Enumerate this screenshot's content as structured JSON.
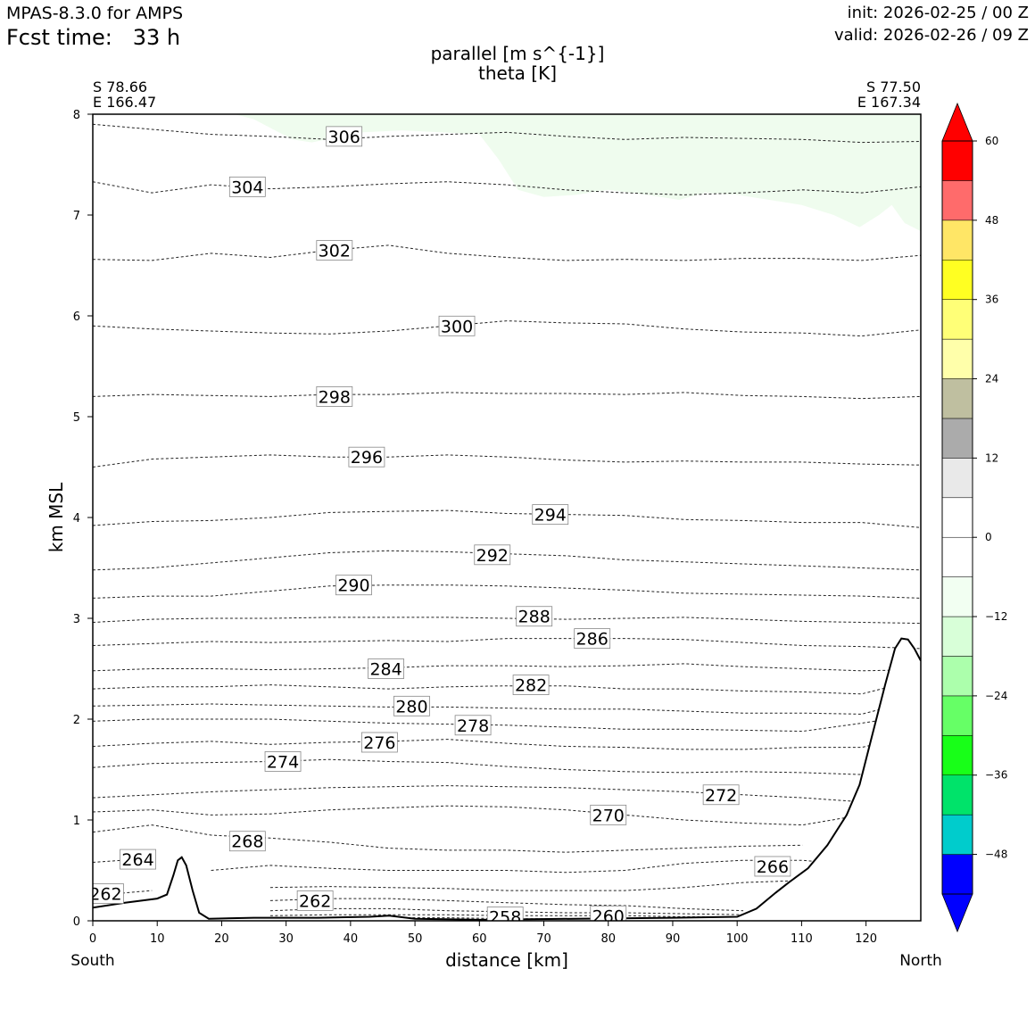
{
  "header": {
    "model": "MPAS-8.3.0 for AMPS",
    "fcst_label": "Fcst time:",
    "fcst_value": "33 h",
    "init": "init: 2026-02-25 / 00 Z",
    "valid": "valid: 2026-02-26 / 09 Z"
  },
  "chart_data": {
    "type": "cross-section",
    "title_line1": "parallel [m s^{-1}]",
    "title_line2": "theta [K]",
    "xlabel": "distance [km]",
    "ylabel": "km MSL",
    "xlim": [
      0,
      128.5
    ],
    "ylim": [
      0,
      8
    ],
    "x_ticks": [
      0,
      10,
      20,
      30,
      40,
      50,
      60,
      70,
      80,
      90,
      100,
      110,
      120
    ],
    "y_ticks": [
      0,
      1,
      2,
      3,
      4,
      5,
      6,
      7,
      8
    ],
    "left_end": {
      "lat": "S 78.66",
      "lon": "E 166.47",
      "direction": "South"
    },
    "right_end": {
      "lat": "S 77.50",
      "lon": "E 167.34",
      "direction": "North"
    },
    "terrain": [
      [
        0,
        0.13
      ],
      [
        5,
        0.18
      ],
      [
        10,
        0.22
      ],
      [
        11.5,
        0.26
      ],
      [
        12.5,
        0.45
      ],
      [
        13.2,
        0.6
      ],
      [
        13.8,
        0.63
      ],
      [
        14.5,
        0.55
      ],
      [
        15.5,
        0.3
      ],
      [
        16.5,
        0.08
      ],
      [
        18,
        0.02
      ],
      [
        25,
        0.03
      ],
      [
        35,
        0.03
      ],
      [
        43,
        0.04
      ],
      [
        46,
        0.05
      ],
      [
        50,
        0.02
      ],
      [
        60,
        0.01
      ],
      [
        75,
        0.02
      ],
      [
        90,
        0.03
      ],
      [
        100,
        0.04
      ],
      [
        103,
        0.12
      ],
      [
        106,
        0.28
      ],
      [
        108,
        0.38
      ],
      [
        111,
        0.52
      ],
      [
        114,
        0.75
      ],
      [
        117,
        1.05
      ],
      [
        119,
        1.35
      ],
      [
        121,
        1.85
      ],
      [
        123,
        2.35
      ],
      [
        124.5,
        2.7
      ],
      [
        125.5,
        2.8
      ],
      [
        126.5,
        2.79
      ],
      [
        127.5,
        2.7
      ],
      [
        128.5,
        2.58
      ]
    ],
    "isentropes": [
      {
        "theta": 306,
        "y": [
          7.9,
          7.85,
          7.8,
          7.78,
          7.75,
          7.78,
          7.8,
          7.82,
          7.78,
          7.75,
          7.77,
          7.76,
          7.75,
          7.72,
          7.73
        ],
        "label_x": 39,
        "label_y": 7.78
      },
      {
        "theta": 304,
        "y": [
          7.33,
          7.22,
          7.3,
          7.26,
          7.28,
          7.31,
          7.33,
          7.3,
          7.25,
          7.22,
          7.2,
          7.22,
          7.25,
          7.22,
          7.28
        ],
        "label_x": 24,
        "label_y": 7.28
      },
      {
        "theta": 302,
        "y": [
          6.56,
          6.55,
          6.62,
          6.58,
          6.65,
          6.7,
          6.62,
          6.58,
          6.55,
          6.56,
          6.55,
          6.57,
          6.57,
          6.55,
          6.6
        ],
        "label_x": 37.5,
        "label_y": 6.65
      },
      {
        "theta": 300,
        "y": [
          5.9,
          5.87,
          5.85,
          5.83,
          5.82,
          5.85,
          5.9,
          5.95,
          5.93,
          5.92,
          5.87,
          5.84,
          5.83,
          5.8,
          5.86
        ],
        "label_x": 56.5,
        "label_y": 5.9
      },
      {
        "theta": 298,
        "y": [
          5.2,
          5.22,
          5.21,
          5.2,
          5.22,
          5.22,
          5.24,
          5.23,
          5.23,
          5.22,
          5.24,
          5.21,
          5.2,
          5.18,
          5.2
        ],
        "label_x": 37.5,
        "label_y": 5.2
      },
      {
        "theta": 296,
        "y": [
          4.5,
          4.58,
          4.6,
          4.62,
          4.6,
          4.6,
          4.62,
          4.6,
          4.57,
          4.55,
          4.56,
          4.55,
          4.55,
          4.53,
          4.52
        ],
        "label_x": 42.5,
        "label_y": 4.6
      },
      {
        "theta": 294,
        "y": [
          3.92,
          3.96,
          3.97,
          4.0,
          4.05,
          4.06,
          4.07,
          4.04,
          4.03,
          4.02,
          3.98,
          3.97,
          3.95,
          3.95,
          3.9
        ],
        "label_x": 71,
        "label_y": 4.03
      },
      {
        "theta": 292,
        "y": [
          3.48,
          3.5,
          3.55,
          3.6,
          3.65,
          3.67,
          3.66,
          3.64,
          3.62,
          3.58,
          3.56,
          3.54,
          3.52,
          3.5,
          3.48
        ],
        "label_x": 62,
        "label_y": 3.63
      },
      {
        "theta": 290,
        "y": [
          3.2,
          3.22,
          3.22,
          3.27,
          3.32,
          3.33,
          3.33,
          3.32,
          3.3,
          3.28,
          3.25,
          3.24,
          3.23,
          3.22,
          3.2
        ],
        "label_x": 40.5,
        "label_y": 3.33
      },
      {
        "theta": 288,
        "y": [
          2.96,
          2.99,
          3.0,
          3.0,
          3.01,
          3.01,
          3.01,
          3.0,
          2.99,
          3.0,
          3.01,
          2.99,
          2.97,
          2.96,
          2.95
        ],
        "label_x": 68.5,
        "label_y": 3.02
      },
      {
        "theta": 286,
        "y": [
          2.73,
          2.75,
          2.77,
          2.76,
          2.77,
          2.78,
          2.77,
          2.8,
          2.8,
          2.8,
          2.79,
          2.76,
          2.73,
          2.72,
          2.7
        ],
        "label_x": 77.5,
        "label_y": 2.8
      },
      {
        "theta": 284,
        "y": [
          2.48,
          2.5,
          2.5,
          2.49,
          2.5,
          2.51,
          2.53,
          2.53,
          2.52,
          2.53,
          2.55,
          2.52,
          2.5,
          2.48,
          2.49
        ],
        "label_x": 45.5,
        "label_y": 2.5
      },
      {
        "theta": 282,
        "y": [
          2.3,
          2.32,
          2.32,
          2.34,
          2.32,
          2.3,
          2.32,
          2.33,
          2.33,
          2.3,
          2.3,
          2.28,
          2.27,
          2.25,
          2.4
        ],
        "label_x": 68,
        "label_y": 2.34
      },
      {
        "theta": 280,
        "y": [
          2.13,
          2.14,
          2.15,
          2.14,
          2.13,
          2.12,
          2.12,
          2.11,
          2.1,
          2.1,
          2.08,
          2.06,
          2.06,
          2.05,
          2.2
        ],
        "label_x": 49.5,
        "label_y": 2.13
      },
      {
        "theta": 278,
        "y": [
          1.98,
          2.0,
          2.0,
          2.0,
          1.98,
          1.96,
          1.95,
          1.94,
          1.92,
          1.9,
          1.9,
          1.89,
          1.88,
          1.96,
          2.05
        ],
        "label_x": 59,
        "label_y": 1.94
      },
      {
        "theta": 276,
        "y": [
          1.73,
          1.76,
          1.78,
          1.75,
          1.77,
          1.78,
          1.8,
          1.76,
          1.73,
          1.72,
          1.7,
          1.7,
          1.72,
          1.72,
          1.85
        ],
        "label_x": 44.5,
        "label_y": 1.77
      },
      {
        "theta": 274,
        "y": [
          1.52,
          1.56,
          1.57,
          1.58,
          1.6,
          1.58,
          1.57,
          1.53,
          1.5,
          1.48,
          1.47,
          1.48,
          1.47,
          1.45,
          1.6
        ],
        "label_x": 29.5,
        "label_y": 1.58
      },
      {
        "theta": 272,
        "y": [
          1.22,
          1.25,
          1.28,
          1.3,
          1.32,
          1.33,
          1.34,
          1.33,
          1.32,
          1.3,
          1.28,
          1.25,
          1.22,
          1.18,
          null
        ],
        "label_x": 97.5,
        "label_y": 1.25
      },
      {
        "theta": 270,
        "y": [
          1.08,
          1.1,
          1.05,
          1.06,
          1.1,
          1.12,
          1.14,
          1.13,
          1.1,
          1.05,
          1.0,
          0.97,
          0.95,
          1.05,
          null
        ],
        "label_x": 80,
        "label_y": 1.05
      },
      {
        "theta": 268,
        "y": [
          0.88,
          0.95,
          0.85,
          0.82,
          0.78,
          0.72,
          0.7,
          0.7,
          0.68,
          0.7,
          0.72,
          0.74,
          0.75,
          null,
          null
        ],
        "label_x": 24,
        "label_y": 0.79
      },
      {
        "theta": 266,
        "y": [
          null,
          null,
          0.5,
          0.55,
          0.52,
          0.5,
          0.5,
          0.5,
          0.48,
          0.5,
          0.57,
          0.6,
          0.6,
          0.55,
          null
        ],
        "label_x": 105.5,
        "label_y": 0.54
      },
      {
        "theta": 264,
        "y": [
          0.58,
          0.62,
          null,
          0.33,
          0.34,
          0.33,
          0.32,
          0.3,
          0.3,
          0.3,
          0.33,
          0.38,
          0.4,
          0.4,
          null
        ],
        "label_x": 7,
        "label_y": 0.61
      },
      {
        "theta": 262,
        "y": [
          0.25,
          0.3,
          null,
          0.2,
          0.22,
          0.22,
          0.2,
          0.18,
          0.16,
          0.15,
          0.12,
          0.1,
          null,
          null,
          null
        ],
        "label_x": 2,
        "label_y": 0.27
      },
      {
        "theta": 262,
        "y": [
          null,
          null,
          null,
          0.1,
          0.12,
          0.12,
          0.1,
          0.09,
          0.08,
          0.08,
          0.07,
          0.06,
          null,
          null,
          null
        ],
        "label_x": 34.5,
        "label_y": 0.2
      },
      {
        "theta": 260,
        "y": [
          null,
          null,
          null,
          0.05,
          0.06,
          0.06,
          0.06,
          0.05,
          0.05,
          0.05,
          0.04,
          0.04,
          null,
          null,
          null
        ],
        "label_x": 80,
        "label_y": 0.05
      },
      {
        "theta": 258,
        "y": [
          null,
          null,
          null,
          0.02,
          0.03,
          0.03,
          0.03,
          0.02,
          0.02,
          0.02,
          null,
          null,
          null,
          null,
          null
        ],
        "label_x": 64,
        "label_y": 0.04
      }
    ],
    "shading_note": "light green region near top indicates weak negative parallel wind (-12 to -6 m/s)",
    "colorbar": {
      "bounds": [
        -54,
        -48,
        -42,
        -36,
        -30,
        -24,
        -18,
        -12,
        -6,
        0,
        6,
        12,
        18,
        24,
        30,
        36,
        42,
        48,
        54,
        60
      ],
      "colors": [
        "#0000ff",
        "#00cccc",
        "#00e36a",
        "#18ff18",
        "#66ff66",
        "#acffac",
        "#d8ffd8",
        "#f2fff2",
        "#ffffff",
        "#ffffff",
        "#e9e9e9",
        "#ababab",
        "#bfbfa0",
        "#ffffaa",
        "#ffff77",
        "#ffff22",
        "#ffe666",
        "#ff6b6b",
        "#ff0000"
      ],
      "under_color": "#0000ff",
      "over_color": "#ff0000",
      "tick_labels": [
        "60",
        "48",
        "36",
        "24",
        "12",
        "0",
        "−12",
        "−24",
        "−36",
        "−48"
      ]
    }
  }
}
